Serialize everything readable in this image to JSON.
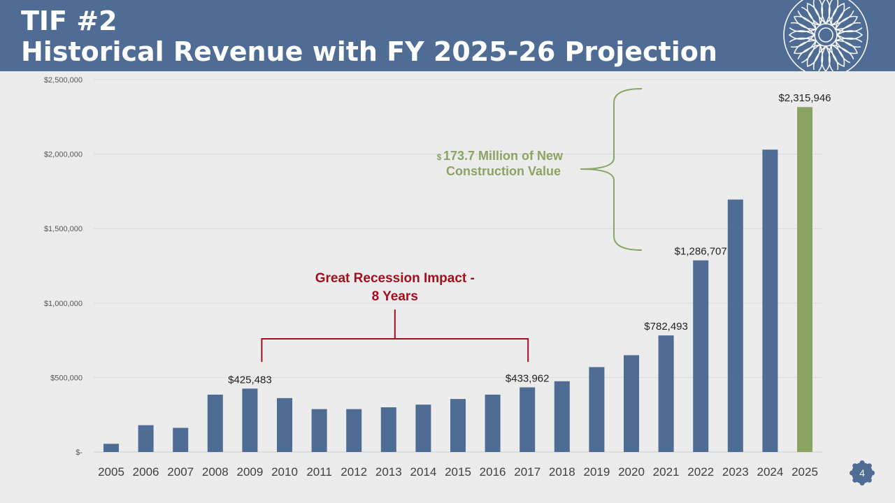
{
  "header": {
    "title_line1": "TIF #2",
    "title_line2": "Historical Revenue with FY 2025-26 Projection"
  },
  "page_number": "4",
  "colors": {
    "header_bg": "#4e6c94",
    "bar": "#4e6c94",
    "bar_projection": "#8aa463",
    "recession_annotation": "#a50e1e",
    "construction_annotation": "#8aa463"
  },
  "chart_data": {
    "type": "bar",
    "title": "",
    "xlabel": "",
    "ylabel": "",
    "ylim": [
      0,
      2500000
    ],
    "grid": true,
    "yticks": [
      {
        "value": 0,
        "label": "$-"
      },
      {
        "value": 500000,
        "label": "$500,000"
      },
      {
        "value": 1000000,
        "label": "$1,000,000"
      },
      {
        "value": 1500000,
        "label": "$1,500,000"
      },
      {
        "value": 2000000,
        "label": "$2,000,000"
      },
      {
        "value": 2500000,
        "label": "$2,500,000"
      }
    ],
    "categories": [
      "2005",
      "2006",
      "2007",
      "2008",
      "2009",
      "2010",
      "2011",
      "2012",
      "2013",
      "2014",
      "2015",
      "2016",
      "2017",
      "2018",
      "2019",
      "2020",
      "2021",
      "2022",
      "2023",
      "2024",
      "2025"
    ],
    "values": [
      55000,
      180000,
      162000,
      385000,
      425483,
      362000,
      288000,
      288000,
      300000,
      318000,
      356000,
      385000,
      433962,
      475000,
      570000,
      650000,
      782493,
      1286707,
      1695000,
      2030000,
      2315946
    ],
    "projection_index": 20,
    "data_labels": [
      {
        "index": 4,
        "text": "$425,483"
      },
      {
        "index": 12,
        "text": "$433,962"
      },
      {
        "index": 16,
        "text": "$782,493"
      },
      {
        "index": 17,
        "text": "$1,286,707"
      },
      {
        "index": 20,
        "text": "$2,315,946"
      }
    ],
    "annotations": [
      {
        "id": "recession",
        "lines": [
          "Great Recession Impact -",
          "8 Years"
        ],
        "from_index": 4,
        "to_index": 12
      },
      {
        "id": "construction",
        "prefix": "$",
        "lines": [
          "173.7 Million of New",
          "Construction Value"
        ],
        "from_value": 1286707,
        "to_value": 2315946
      }
    ]
  }
}
